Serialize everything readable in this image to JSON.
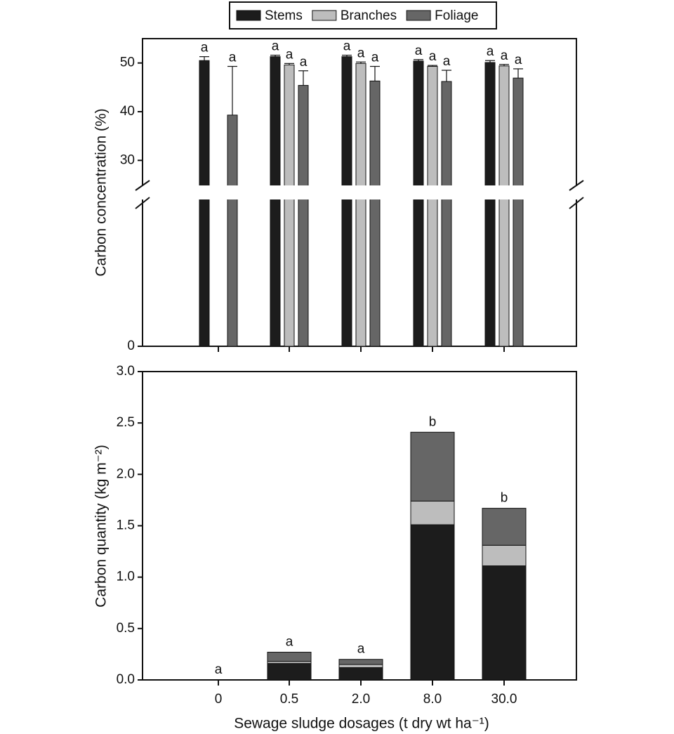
{
  "chart_data": [
    {
      "type": "bar",
      "ylabel": "Carbon concentration (%)",
      "ylim": [
        0,
        55
      ],
      "y_break": 25,
      "yticks": [
        0,
        30,
        40,
        50
      ],
      "series": [
        {
          "name": "Stems",
          "color": "#1c1c1c",
          "values": [
            50.5,
            51.3,
            51.3,
            50.4,
            50.1
          ],
          "errors": [
            0.8,
            0.3,
            0.3,
            0.3,
            0.4
          ],
          "labels": [
            "a",
            "a",
            "a",
            "a",
            "a"
          ]
        },
        {
          "name": "Branches",
          "color": "#bdbdbd",
          "values": [
            null,
            49.6,
            49.9,
            49.3,
            49.4
          ],
          "errors": [
            null,
            0.3,
            0.3,
            0.2,
            0.3
          ],
          "labels": [
            null,
            "a",
            "a",
            "a",
            "a"
          ]
        },
        {
          "name": "Foliage",
          "color": "#666666",
          "values": [
            39.3,
            45.4,
            46.3,
            46.2,
            46.9
          ],
          "errors": [
            10,
            3,
            3,
            2.3,
            1.9
          ],
          "labels": [
            "a",
            "a",
            "a",
            "a",
            "a"
          ]
        }
      ]
    },
    {
      "type": "stacked_bar",
      "ylabel": "Carbon quantity (kg m⁻²)",
      "xlabel": "Sewage sludge dosages (t dry wt ha⁻¹)",
      "categories": [
        "0",
        "0.5",
        "2.0",
        "8.0",
        "30.0"
      ],
      "ylim": [
        0,
        3
      ],
      "yticks": [
        {
          "value": 0,
          "label": "0.0"
        },
        {
          "value": 0.5,
          "label": "0.5"
        },
        {
          "value": 1,
          "label": "1.0"
        },
        {
          "value": 1.5,
          "label": "1.5"
        },
        {
          "value": 2,
          "label": "2.0"
        },
        {
          "value": 2.5,
          "label": "2.5"
        },
        {
          "value": 3,
          "label": "3.0"
        }
      ],
      "labels": [
        "a",
        "a",
        "a",
        "b",
        "b"
      ],
      "series": [
        {
          "name": "Stems",
          "color": "#1c1c1c",
          "values": [
            0,
            0.16,
            0.12,
            1.51,
            1.11
          ]
        },
        {
          "name": "Branches",
          "color": "#bdbdbd",
          "values": [
            0,
            0.02,
            0.03,
            0.23,
            0.2
          ]
        },
        {
          "name": "Foliage",
          "color": "#666666",
          "values": [
            0,
            0.09,
            0.05,
            0.67,
            0.36
          ]
        }
      ]
    }
  ]
}
